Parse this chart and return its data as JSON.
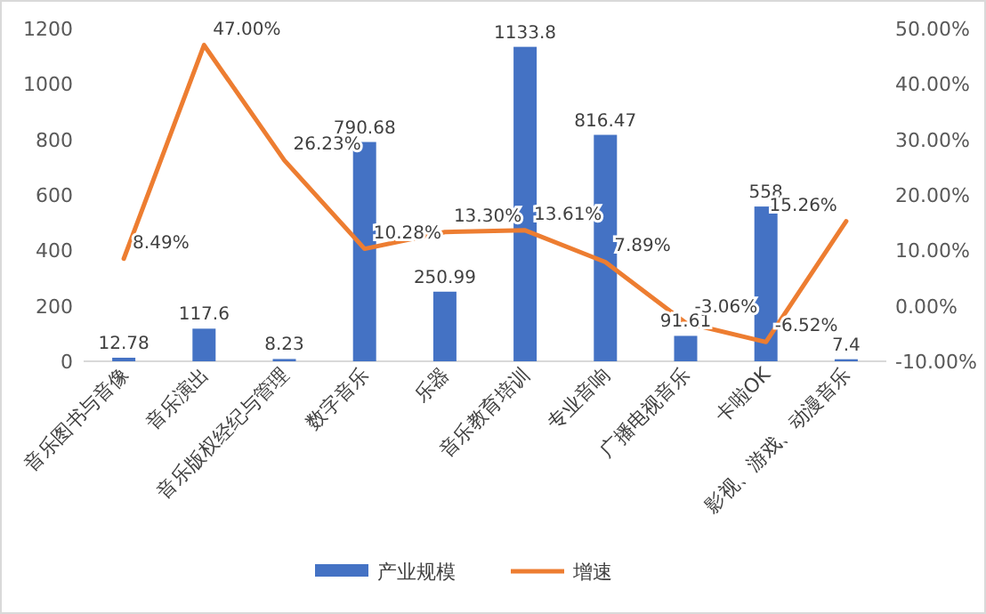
{
  "chart_data": {
    "type": "bar",
    "categories": [
      "音乐图书与音像",
      "音乐演出",
      "音乐版权经纪与管理",
      "数字音乐",
      "乐器",
      "音乐教育培训",
      "专业音响",
      "广播电视音乐",
      "卡啦OK",
      "影视、游戏、动漫音乐"
    ],
    "series": [
      {
        "name": "产业规模",
        "color": "#4472c4",
        "values": [
          12.78,
          117.6,
          8.23,
          790.68,
          250.99,
          1133.8,
          816.47,
          91.61,
          558,
          7.4
        ],
        "value_labels": [
          "12.78",
          "117.6",
          "8.23",
          "790.68",
          "250.99",
          "1133.8",
          "816.47",
          "91.61",
          "558",
          "7.4"
        ]
      },
      {
        "name": "增速",
        "type": "line",
        "axis": "y2",
        "color": "#ed7d31",
        "values": [
          8.49,
          47.0,
          26.23,
          10.28,
          13.3,
          13.61,
          7.89,
          -3.06,
          -6.52,
          15.26
        ],
        "value_labels": [
          "8.49%",
          "47.00%",
          "26.23%",
          "10.28%",
          "13.30%",
          "13.61%",
          "7.89%",
          "-3.06%",
          "-6.52%",
          "15.26%"
        ]
      }
    ],
    "ylim": [
      0,
      1200
    ],
    "yticks": [
      0,
      200,
      400,
      600,
      800,
      1000,
      1200
    ],
    "y2lim": [
      -10,
      50
    ],
    "y2ticks": [
      {
        "value": -10,
        "label": "-10.00%"
      },
      {
        "value": 0,
        "label": "0.00%"
      },
      {
        "value": 10,
        "label": "10.00%"
      },
      {
        "value": 20,
        "label": "20.00%"
      },
      {
        "value": 30,
        "label": "30.00%"
      },
      {
        "value": 40,
        "label": "40.00%"
      },
      {
        "value": 50,
        "label": "50.00%"
      }
    ],
    "legend": "bottom",
    "marker": "none",
    "line_style": "solid",
    "grid": false
  }
}
